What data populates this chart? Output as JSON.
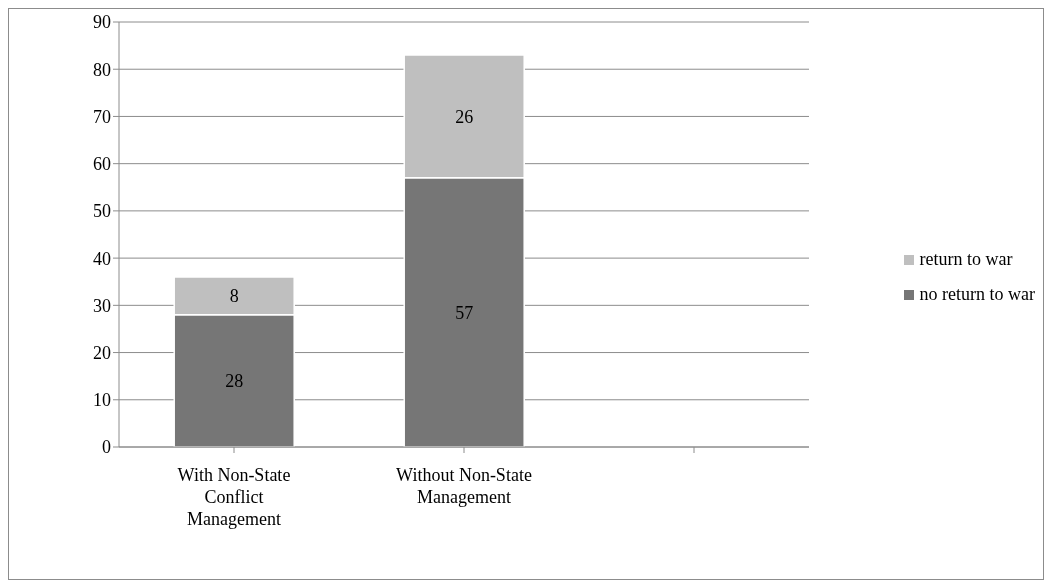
{
  "chart_data": {
    "type": "bar",
    "stacked": true,
    "categories": [
      "With Non-State Conflict Management",
      "Without Non-State Management",
      null
    ],
    "series": [
      {
        "name": "no return to war",
        "color": "#767676",
        "values": [
          28,
          57,
          null
        ]
      },
      {
        "name": "return to war",
        "color": "#bfbfbf",
        "values": [
          8,
          26,
          null
        ]
      }
    ],
    "ylim": [
      0,
      90
    ],
    "yticks": [
      0,
      10,
      20,
      30,
      40,
      50,
      60,
      70,
      80,
      90
    ],
    "grid": "y",
    "legend": "right",
    "data_labels": true
  }
}
